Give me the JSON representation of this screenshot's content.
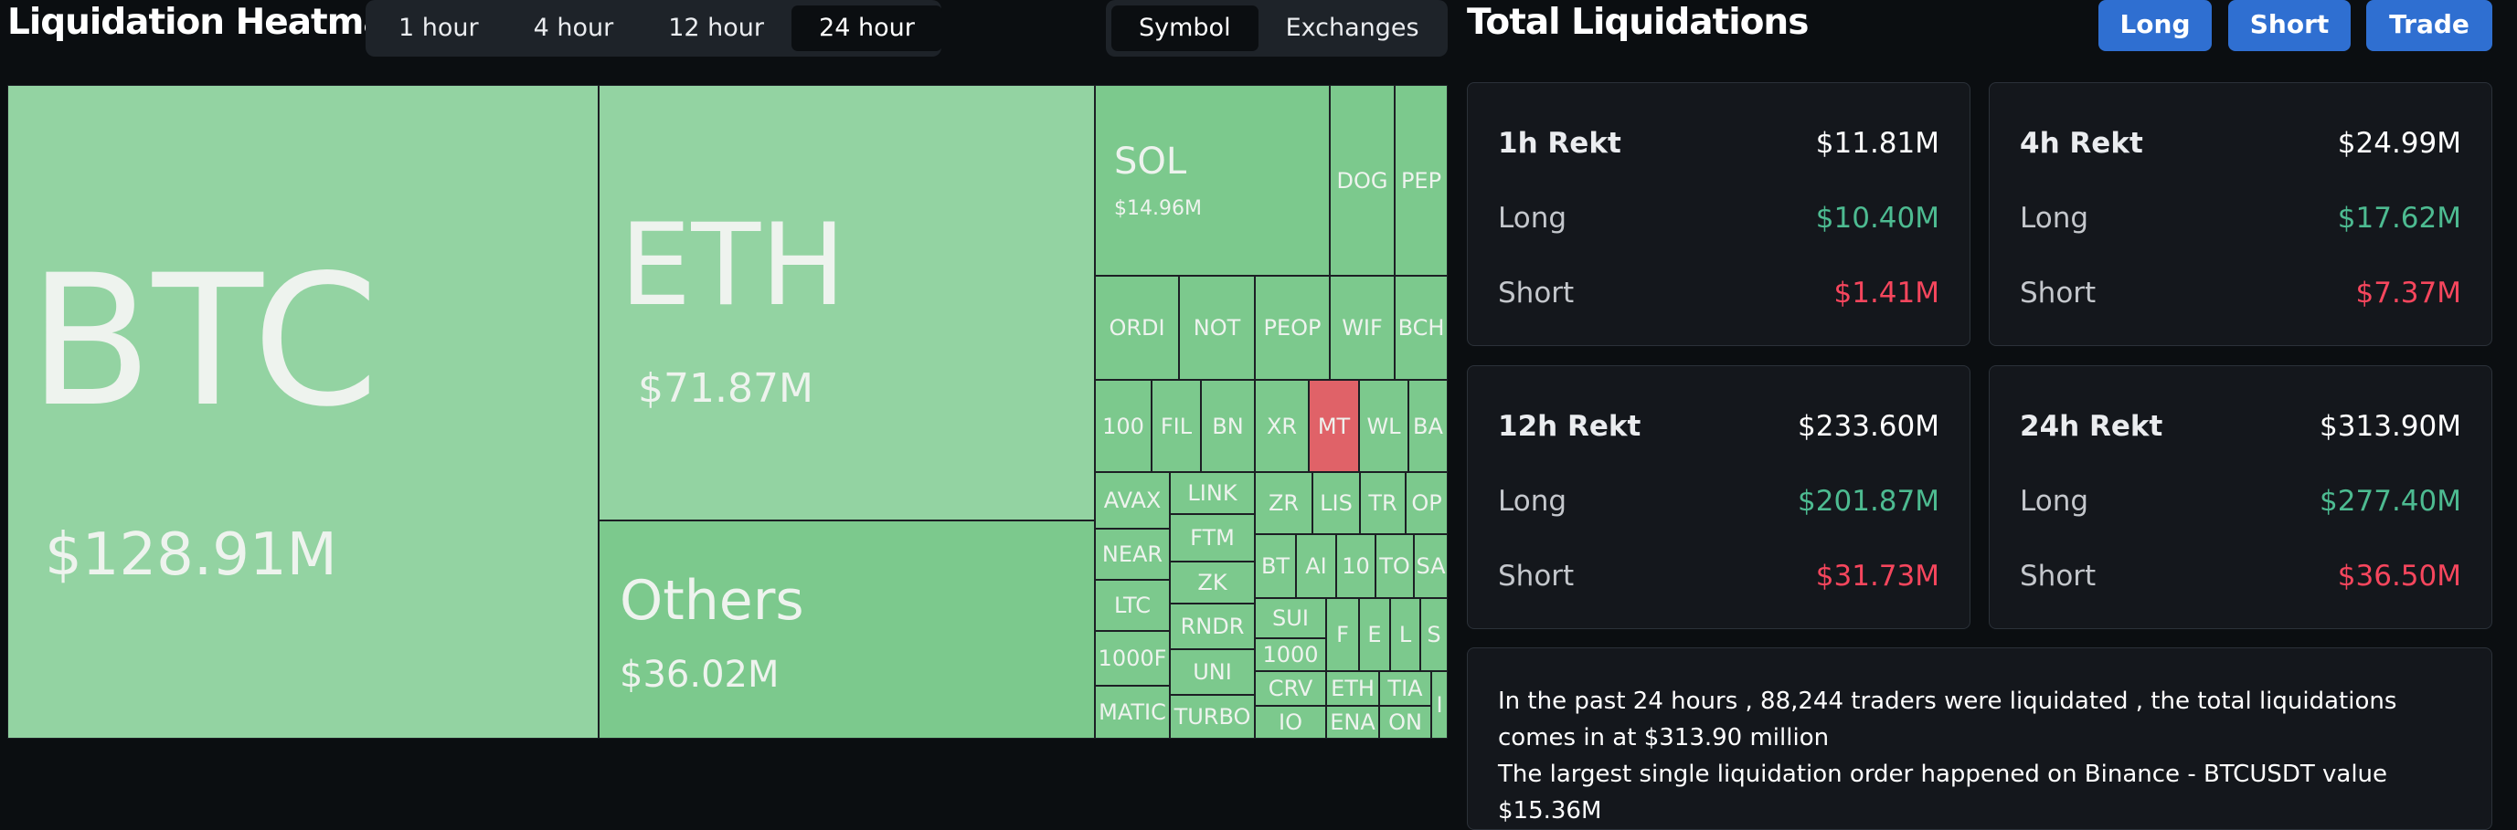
{
  "heatmap": {
    "title": "Liquidation Heatmap",
    "time_tabs": [
      "1 hour",
      "4 hour",
      "12 hour",
      "24 hour"
    ],
    "active_time_tab": "24 hour",
    "group_tabs": [
      "Symbol",
      "Exchanges"
    ],
    "active_group_tab": "Symbol",
    "tiles": {
      "btc": {
        "symbol": "BTC",
        "value": "$128.91M"
      },
      "eth": {
        "symbol": "ETH",
        "value": "$71.87M"
      },
      "others": {
        "symbol": "Others",
        "value": "$36.02M"
      },
      "sol": {
        "symbol": "SOL",
        "value": "$14.96M"
      },
      "doge": {
        "symbol": "DOG"
      },
      "pepe": {
        "symbol": "PEP"
      },
      "ordi": {
        "symbol": "ORDI"
      },
      "not": {
        "symbol": "NOT"
      },
      "people": {
        "symbol": "PEOP"
      },
      "wif": {
        "symbol": "WIF"
      },
      "bch": {
        "symbol": "BCH"
      },
      "k100": {
        "symbol": "100"
      },
      "fil": {
        "symbol": "FIL"
      },
      "bnb": {
        "symbol": "BN"
      },
      "xrp": {
        "symbol": "XR"
      },
      "mt": {
        "symbol": "MT"
      },
      "wl": {
        "symbol": "WL"
      },
      "ba": {
        "symbol": "BA"
      },
      "avax": {
        "symbol": "AVAX"
      },
      "link": {
        "symbol": "LINK"
      },
      "zro": {
        "symbol": "ZR"
      },
      "lis": {
        "symbol": "LIS"
      },
      "tr": {
        "symbol": "TR"
      },
      "op": {
        "symbol": "OP"
      },
      "ftm": {
        "symbol": "FTM"
      },
      "near": {
        "symbol": "NEAR"
      },
      "zk": {
        "symbol": "ZK"
      },
      "bt": {
        "symbol": "BT"
      },
      "al": {
        "symbol": "AI"
      },
      "ten": {
        "symbol": "10"
      },
      "tc": {
        "symbol": "TO"
      },
      "sa": {
        "symbol": "SA"
      },
      "ltc": {
        "symbol": "LTC"
      },
      "rndr": {
        "symbol": "RNDR"
      },
      "sui": {
        "symbol": "SUI"
      },
      "f": {
        "symbol": "F"
      },
      "e": {
        "symbol": "E"
      },
      "l": {
        "symbol": "L"
      },
      "s": {
        "symbol": "S"
      },
      "k1000": {
        "symbol": "1000F"
      },
      "uni": {
        "symbol": "UNI"
      },
      "k1000b": {
        "symbol": "1000"
      },
      "crv": {
        "symbol": "CRV"
      },
      "eth2": {
        "symbol": "ETH"
      },
      "tia": {
        "symbol": "TIA"
      },
      "matic": {
        "symbol": "MATIC"
      },
      "turbo": {
        "symbol": "TURBO"
      },
      "io": {
        "symbol": "IO"
      },
      "ena": {
        "symbol": "ENA"
      },
      "on": {
        "symbol": "ON"
      },
      "i": {
        "symbol": "I"
      }
    }
  },
  "totals": {
    "title": "Total Liquidations",
    "buttons": {
      "long": "Long",
      "short": "Short",
      "trade": "Trade"
    },
    "cards": [
      {
        "label": "1h Rekt",
        "total": "$11.81M",
        "long_label": "Long",
        "long": "$10.40M",
        "short_label": "Short",
        "short": "$1.41M"
      },
      {
        "label": "4h Rekt",
        "total": "$24.99M",
        "long_label": "Long",
        "long": "$17.62M",
        "short_label": "Short",
        "short": "$7.37M"
      },
      {
        "label": "12h Rekt",
        "total": "$233.60M",
        "long_label": "Long",
        "long": "$201.87M",
        "short_label": "Short",
        "short": "$31.73M"
      },
      {
        "label": "24h Rekt",
        "total": "$313.90M",
        "long_label": "Long",
        "long": "$277.40M",
        "short_label": "Short",
        "short": "$36.50M"
      }
    ],
    "summary_line1": "In the past 24 hours , 88,244 traders were liquidated , the total liquidations comes in at $313.90 million",
    "summary_line2": "The largest single liquidation order happened on Binance - BTCUSDT value $15.36M"
  },
  "colors": {
    "tile_light": "#93d3a2",
    "tile_mid": "#7cc98d",
    "tile_red": "#e06268",
    "long": "#4dbb91",
    "short": "#f6465d",
    "button": "#2f6fd1"
  }
}
